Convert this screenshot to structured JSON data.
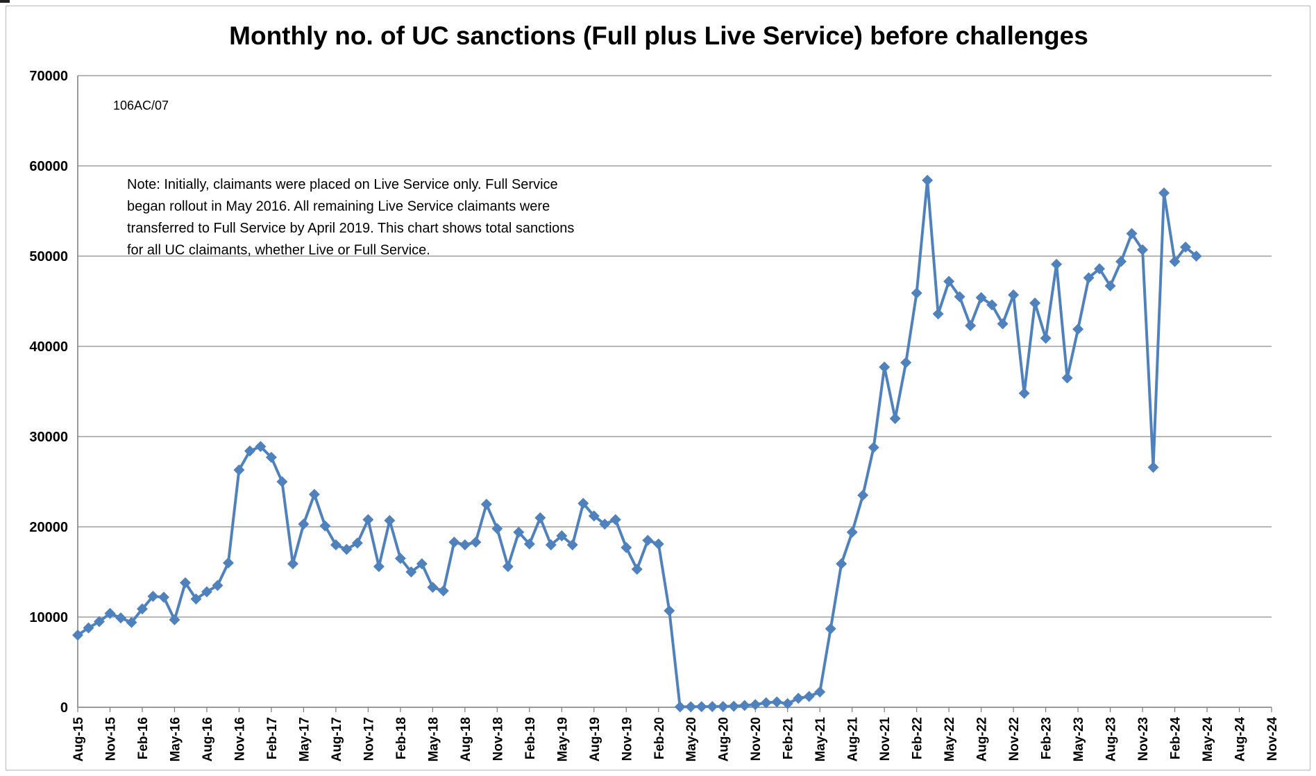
{
  "chart_data": {
    "type": "line",
    "title": "Monthly no. of UC sanctions (Full plus Live Service) before challenges",
    "code_label": "106AC/07",
    "note_lines": [
      "Note: Initially, claimants were placed on Live Service only. Full Service",
      "began rollout in May 2016. All remaining Live Service claimants were",
      "transferred to Full Service by  April 2019. This chart shows total sanctions",
      "for all UC claimants, whether Live or Full Service."
    ],
    "xlabel": "",
    "ylabel": "",
    "ylim": [
      0,
      70000
    ],
    "yticks": [
      "0",
      "10000",
      "20000",
      "30000",
      "40000",
      "50000",
      "60000",
      "70000"
    ],
    "xticks": [
      "Aug-15",
      "Nov-15",
      "Feb-16",
      "May-16",
      "Aug-16",
      "Nov-16",
      "Feb-17",
      "May-17",
      "Aug-17",
      "Nov-17",
      "Feb-18",
      "May-18",
      "Aug-18",
      "Nov-18",
      "Feb-19",
      "May-19",
      "Aug-19",
      "Nov-19",
      "Feb-20",
      "May-20",
      "Aug-20",
      "Nov-20",
      "Feb-21",
      "May-21",
      "Aug-21",
      "Nov-21",
      "Feb-22",
      "May-22",
      "Aug-22",
      "Nov-22",
      "Feb-23",
      "May-23",
      "Aug-23",
      "Nov-23",
      "Feb-24",
      "May-24",
      "Aug-24",
      "Nov-24"
    ],
    "grid": true,
    "legend": "none",
    "line_color": "#4F81BD",
    "series": [
      {
        "values": [
          8000,
          8800,
          9500,
          10400,
          9900,
          9400,
          10900,
          12300,
          12200,
          9700,
          13800,
          12000,
          12800,
          13500,
          16000,
          26300,
          28400,
          28900,
          27700,
          25000,
          15900,
          20300,
          23600,
          20100,
          18000,
          17500,
          18200,
          20800,
          15600,
          20700,
          16500,
          15000,
          15900,
          13300,
          12900,
          18300,
          18000,
          18300,
          22500,
          19800,
          15600,
          19400,
          18100,
          21000,
          18000,
          19000,
          18000,
          22600,
          21200,
          20300,
          20800,
          17700,
          15300,
          18500,
          18100,
          10700,
          50,
          60,
          70,
          80,
          90,
          120,
          200,
          300,
          500,
          600,
          400,
          1000,
          1200,
          1700,
          8700,
          15900,
          19400,
          23500,
          28800,
          37700,
          32000,
          38200,
          45900,
          58400,
          43600,
          47200,
          45500,
          42300,
          45400,
          44600,
          42500,
          45700,
          34800,
          44800,
          40900,
          49100,
          36500,
          41900,
          47600,
          48600,
          46700,
          49400,
          52500,
          50700,
          26600,
          57000,
          49400,
          51000,
          50000
        ]
      }
    ]
  }
}
